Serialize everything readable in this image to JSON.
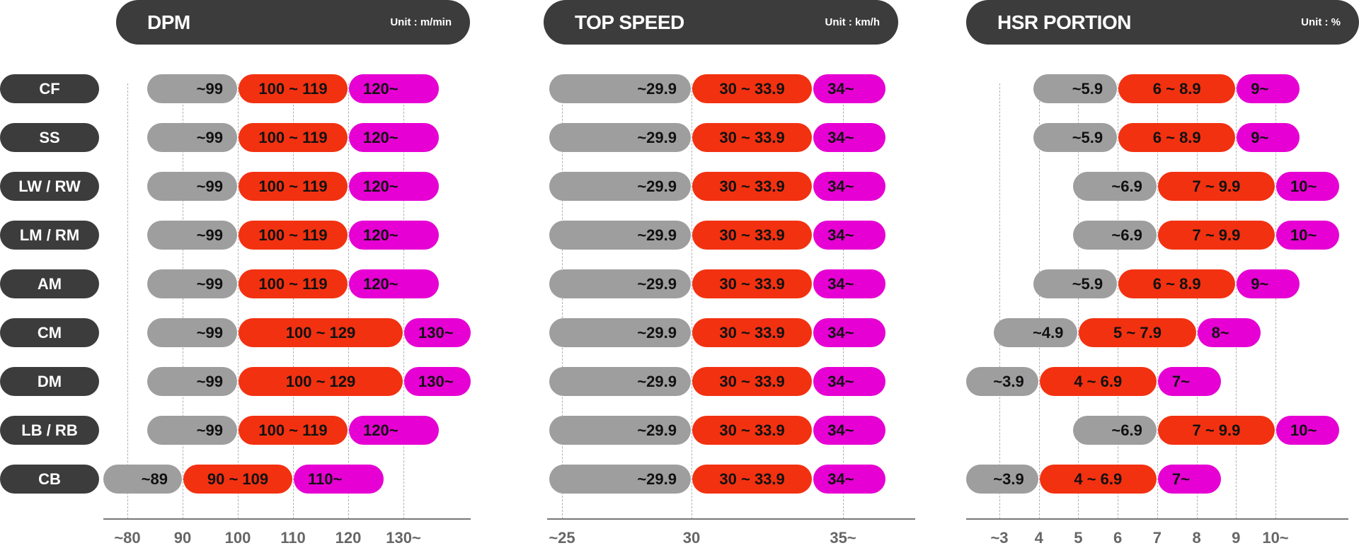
{
  "chart_data": [
    {
      "type": "range-bar",
      "title": "DPM",
      "unit": "Unit : m/min",
      "ticks": [
        {
          "label": "~80",
          "value": 80
        },
        {
          "label": "90",
          "value": 90
        },
        {
          "label": "100",
          "value": 100
        },
        {
          "label": "110",
          "value": 110
        },
        {
          "label": "120",
          "value": 120
        },
        {
          "label": "130~",
          "value": 130
        }
      ],
      "grid": true,
      "rows": [
        {
          "low": "~99",
          "mid": "100 ~ 119",
          "high": "120~",
          "b1": 100,
          "b2": 120
        },
        {
          "low": "~99",
          "mid": "100 ~ 119",
          "high": "120~",
          "b1": 100,
          "b2": 120
        },
        {
          "low": "~99",
          "mid": "100 ~ 119",
          "high": "120~",
          "b1": 100,
          "b2": 120
        },
        {
          "low": "~99",
          "mid": "100 ~ 119",
          "high": "120~",
          "b1": 100,
          "b2": 120
        },
        {
          "low": "~99",
          "mid": "100 ~ 119",
          "high": "120~",
          "b1": 100,
          "b2": 120
        },
        {
          "low": "~99",
          "mid": "100 ~ 129",
          "high": "130~",
          "b1": 100,
          "b2": 130
        },
        {
          "low": "~99",
          "mid": "100 ~ 129",
          "high": "130~",
          "b1": 100,
          "b2": 130
        },
        {
          "low": "~99",
          "mid": "100 ~ 119",
          "high": "120~",
          "b1": 100,
          "b2": 120
        },
        {
          "low": "~89",
          "mid": "90 ~ 109",
          "high": "110~",
          "b1": 90,
          "b2": 110
        }
      ]
    },
    {
      "type": "range-bar",
      "title": "TOP SPEED",
      "unit": "Unit : km/h",
      "ticks": [
        {
          "label": "~25",
          "value": 25
        },
        {
          "label": "30",
          "value": 30
        },
        {
          "label": "35~",
          "value": 35
        }
      ],
      "grid": true,
      "rows": [
        {
          "low": "~29.9",
          "mid": "30 ~ 33.9",
          "high": "34~",
          "b1": 30,
          "b2": 34
        },
        {
          "low": "~29.9",
          "mid": "30 ~ 33.9",
          "high": "34~",
          "b1": 30,
          "b2": 34
        },
        {
          "low": "~29.9",
          "mid": "30 ~ 33.9",
          "high": "34~",
          "b1": 30,
          "b2": 34
        },
        {
          "low": "~29.9",
          "mid": "30 ~ 33.9",
          "high": "34~",
          "b1": 30,
          "b2": 34
        },
        {
          "low": "~29.9",
          "mid": "30 ~ 33.9",
          "high": "34~",
          "b1": 30,
          "b2": 34
        },
        {
          "low": "~29.9",
          "mid": "30 ~ 33.9",
          "high": "34~",
          "b1": 30,
          "b2": 34
        },
        {
          "low": "~29.9",
          "mid": "30 ~ 33.9",
          "high": "34~",
          "b1": 30,
          "b2": 34
        },
        {
          "low": "~29.9",
          "mid": "30 ~ 33.9",
          "high": "34~",
          "b1": 30,
          "b2": 34
        },
        {
          "low": "~29.9",
          "mid": "30 ~ 33.9",
          "high": "34~",
          "b1": 30,
          "b2": 34
        }
      ]
    },
    {
      "type": "range-bar",
      "title": "HSR PORTION",
      "unit": "Unit : %",
      "ticks": [
        {
          "label": "~3",
          "value": 3
        },
        {
          "label": "4",
          "value": 4
        },
        {
          "label": "5",
          "value": 5
        },
        {
          "label": "6",
          "value": 6
        },
        {
          "label": "7",
          "value": 7
        },
        {
          "label": "8",
          "value": 8
        },
        {
          "label": "9",
          "value": 9
        },
        {
          "label": "10~",
          "value": 10
        }
      ],
      "grid": true,
      "rows": [
        {
          "low": "~5.9",
          "mid": "6 ~ 8.9",
          "high": "9~",
          "b1": 6,
          "b2": 9
        },
        {
          "low": "~5.9",
          "mid": "6 ~ 8.9",
          "high": "9~",
          "b1": 6,
          "b2": 9
        },
        {
          "low": "~6.9",
          "mid": "7 ~ 9.9",
          "high": "10~",
          "b1": 7,
          "b2": 10
        },
        {
          "low": "~6.9",
          "mid": "7 ~ 9.9",
          "high": "10~",
          "b1": 7,
          "b2": 10
        },
        {
          "low": "~5.9",
          "mid": "6 ~ 8.9",
          "high": "9~",
          "b1": 6,
          "b2": 9
        },
        {
          "low": "~4.9",
          "mid": "5 ~ 7.9",
          "high": "8~",
          "b1": 5,
          "b2": 8
        },
        {
          "low": "~3.9",
          "mid": "4 ~ 6.9",
          "high": "7~",
          "b1": 4,
          "b2": 7
        },
        {
          "low": "~6.9",
          "mid": "7 ~ 9.9",
          "high": "10~",
          "b1": 7,
          "b2": 10
        },
        {
          "low": "~3.9",
          "mid": "4 ~ 6.9",
          "high": "7~",
          "b1": 4,
          "b2": 7
        }
      ]
    }
  ],
  "positions": [
    "CF",
    "SS",
    "LW / RW",
    "LM / RM",
    "AM",
    "CM",
    "DM",
    "LB / RB",
    "CB"
  ],
  "colors": {
    "low": "#9e9e9e",
    "mid": "#f23111",
    "high": "#e600d3",
    "dark": "#3c3c3c"
  }
}
